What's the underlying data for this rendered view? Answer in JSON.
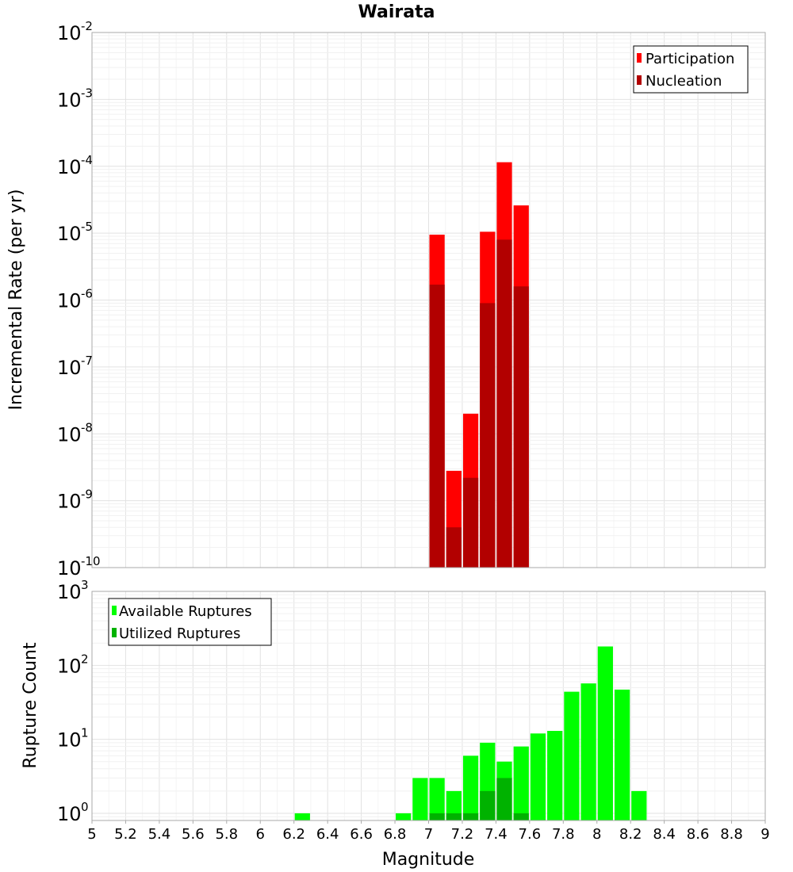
{
  "chart_data": [
    {
      "type": "bar",
      "title": "Wairata",
      "ylabel": "Incremental Rate (per yr)",
      "yscale": "log",
      "ylim": [
        1e-10,
        0.01
      ],
      "ytick_labels": [
        "10",
        "10",
        "10",
        "10",
        "10",
        "10",
        "10",
        "10",
        "10"
      ],
      "ytick_exponents": [
        "-10",
        "-9",
        "-8",
        "-7",
        "-6",
        "-5",
        "-4",
        "-3",
        "-2"
      ],
      "grid": true,
      "legend_position": "top-right",
      "x": [
        7.05,
        7.15,
        7.25,
        7.35,
        7.45,
        7.55
      ],
      "series": [
        {
          "name": "Participation",
          "color": "#ff0000",
          "values": [
            9.5e-06,
            2.8e-09,
            2e-08,
            1.05e-05,
            0.000115,
            2.6e-05
          ]
        },
        {
          "name": "Nucleation",
          "color": "#b20000",
          "values": [
            1.7e-06,
            4e-10,
            2.2e-09,
            9e-07,
            8e-06,
            1.6e-06
          ]
        }
      ]
    },
    {
      "type": "bar",
      "title": "",
      "xlabel": "Magnitude",
      "ylabel": "Rupture Count",
      "yscale": "log",
      "ylim": [
        0.8,
        1000
      ],
      "xlim": [
        5,
        9
      ],
      "xtick_labels": [
        "5",
        "5.2",
        "5.4",
        "5.6",
        "5.8",
        "6",
        "6.2",
        "6.4",
        "6.6",
        "6.8",
        "7",
        "7.2",
        "7.4",
        "7.6",
        "7.8",
        "8",
        "8.2",
        "8.4",
        "8.6",
        "8.8",
        "9"
      ],
      "ytick_labels": [
        "10",
        "10",
        "10",
        "10"
      ],
      "ytick_exponents": [
        "0",
        "1",
        "2",
        "3"
      ],
      "grid": true,
      "legend_position": "top-left",
      "x": [
        6.25,
        6.85,
        6.95,
        7.05,
        7.15,
        7.25,
        7.35,
        7.45,
        7.55,
        7.65,
        7.75,
        7.85,
        7.95,
        8.05,
        8.15,
        8.25
      ],
      "series": [
        {
          "name": "Available Ruptures",
          "color": "#00ff00",
          "values": [
            1,
            1,
            3,
            3,
            2,
            6,
            9,
            5,
            8,
            12,
            13,
            44,
            57,
            180,
            47,
            2
          ]
        },
        {
          "name": "Utilized Ruptures",
          "color": "#00b200",
          "values": [
            0,
            0,
            0,
            1,
            1,
            1,
            2,
            3,
            1,
            0,
            0,
            0,
            0,
            0,
            0,
            0
          ]
        }
      ]
    }
  ]
}
